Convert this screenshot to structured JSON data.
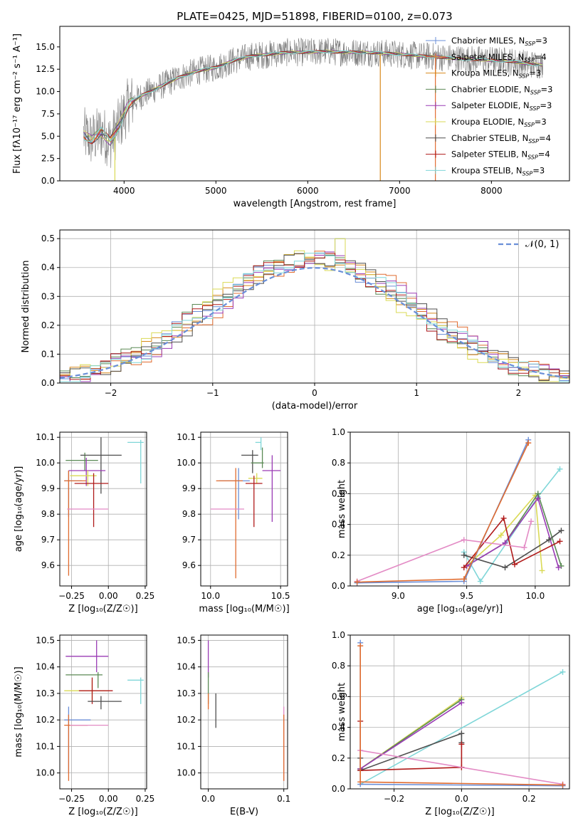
{
  "title": "PLATE=0425, MJD=51898, FIBERID=0100, z=0.073",
  "colors": {
    "Chabrier MILES": "#6b8fd8",
    "Salpeter MILES": "#e06c30",
    "Kroupa MILES": "#d8891c",
    "Chabrier ELODIE": "#5b8a55",
    "Salpeter ELODIE": "#9a3bb5",
    "Kroupa ELODIE": "#dada55",
    "Chabrier STELIB": "#4f4f4f",
    "Salpeter STELIB": "#b01a1a",
    "Kroupa STELIB": "#7fd6d8",
    "pink": "#e38bc5",
    "gauss": "#6a8fd8"
  },
  "legend_main": [
    {
      "model": "Chabrier MILES",
      "label": "Chabrier MILES, N_SSP=3"
    },
    {
      "model": "Salpeter MILES",
      "label": "Salpeter MILES, N_SSP=4"
    },
    {
      "model": "Kroupa MILES",
      "label": "Kroupa MILES, N_SSP=3"
    },
    {
      "model": "Chabrier ELODIE",
      "label": "Chabrier ELODIE, N_SSP=3"
    },
    {
      "model": "Salpeter ELODIE",
      "label": "Salpeter ELODIE, N_SSP=3"
    },
    {
      "model": "Kroupa ELODIE",
      "label": "Kroupa ELODIE, N_SSP=3"
    },
    {
      "model": "Chabrier STELIB",
      "label": "Chabrier STELIB, N_SSP=4"
    },
    {
      "model": "Salpeter STELIB",
      "label": "Salpeter STELIB, N_SSP=4"
    },
    {
      "model": "Kroupa STELIB",
      "label": "Kroupa STELIB, N_SSP=3"
    }
  ],
  "chart_data": [
    {
      "type": "line",
      "title": "PLATE=0425, MJD=51898, FIBERID=0100, z=0.073",
      "xlabel": "wavelength [Angstrom, rest frame]",
      "ylabel": "Flux [f_λ 10^-17 erg cm^-2 s^-1 A^-1]",
      "xlim": [
        3300,
        8850
      ],
      "ylim": [
        0,
        17.3
      ],
      "xticks": [
        4000,
        5000,
        6000,
        7000,
        8000
      ],
      "yticks": [
        0.0,
        2.5,
        5.0,
        7.5,
        10.0,
        12.5,
        15.0
      ],
      "spectrum_envelope": {
        "wavelength": [
          3550,
          3650,
          3750,
          3850,
          3950,
          4050,
          4200,
          4400,
          4600,
          4800,
          5000,
          5200,
          5400,
          5600,
          5800,
          6000,
          6200,
          6400,
          6600,
          6800,
          7000,
          7200,
          7400,
          7600,
          7800,
          8000,
          8200,
          8400,
          8550
        ],
        "flux": [
          5.2,
          4.6,
          5.5,
          4.4,
          6.3,
          8.6,
          9.6,
          10.6,
          11.6,
          12.3,
          12.7,
          13.5,
          14.0,
          14.2,
          14.4,
          14.4,
          14.5,
          14.4,
          14.4,
          14.3,
          14.2,
          14.0,
          13.9,
          13.7,
          13.6,
          13.5,
          13.4,
          13.1,
          13.0
        ]
      },
      "series": [
        "Chabrier MILES",
        "Salpeter MILES",
        "Kroupa MILES",
        "Chabrier ELODIE",
        "Salpeter ELODIE",
        "Kroupa ELODIE",
        "Chabrier STELIB",
        "Salpeter STELIB",
        "Kroupa STELIB"
      ]
    },
    {
      "type": "histogram",
      "xlabel": "(data-model)/error",
      "ylabel": "Normed distribution",
      "xlim": [
        -2.5,
        2.5
      ],
      "ylim": [
        0,
        0.53
      ],
      "xticks": [
        -2,
        -1,
        0,
        1,
        2
      ],
      "yticks": [
        0.0,
        0.1,
        0.2,
        0.3,
        0.4,
        0.5
      ],
      "legend": "𝒩(0, 1)",
      "gaussian": {
        "mu": 0,
        "sigma": 1
      },
      "bin_width": 0.1,
      "series": [
        {
          "model": "Chabrier MILES",
          "offset": 0.02
        },
        {
          "model": "Salpeter MILES",
          "offset": -0.03
        },
        {
          "model": "Kroupa MILES",
          "offset": 0.01
        },
        {
          "model": "Chabrier ELODIE",
          "offset": 0.03
        },
        {
          "model": "Salpeter ELODIE",
          "offset": -0.02
        },
        {
          "model": "Kroupa ELODIE",
          "offset": 0.035
        },
        {
          "model": "Chabrier STELIB",
          "offset": -0.01
        },
        {
          "model": "Salpeter STELIB",
          "offset": 0.025
        },
        {
          "model": "Kroupa STELIB",
          "offset": 0.0
        }
      ]
    },
    {
      "type": "errorbar",
      "xlabel": "Z [log10(Z/Z☉)]",
      "ylabel": "age [log10(age/yr)]",
      "xlim": [
        -0.33,
        0.26
      ],
      "ylim": [
        9.52,
        10.12
      ],
      "xticks": [
        -0.25,
        0.0,
        0.25
      ],
      "yticks": [
        9.6,
        9.7,
        9.8,
        9.9,
        10.0,
        10.1
      ],
      "points": [
        {
          "c": "Kroupa STELIB",
          "x": 0.22,
          "y": 10.08,
          "xerr": [
            0.09,
            0.02
          ],
          "yerr": [
            0.16,
            0.01
          ]
        },
        {
          "c": "Chabrier ELODIE",
          "x": -0.16,
          "y": 10.01,
          "xerr": [
            0.13,
            0.09
          ],
          "yerr": [
            0.04,
            0.03
          ]
        },
        {
          "c": "Chabrier STELIB",
          "x": -0.05,
          "y": 10.03,
          "xerr": [
            0.14,
            0.14
          ],
          "yerr": [
            0.15,
            0.07
          ]
        },
        {
          "c": "Salpeter ELODIE",
          "x": -0.15,
          "y": 9.97,
          "xerr": [
            0.12,
            0.13
          ],
          "yerr": [
            0.06,
            0.05
          ]
        },
        {
          "c": "Kroupa ELODIE",
          "x": -0.14,
          "y": 9.95,
          "xerr": [
            0.12,
            0.06
          ],
          "yerr": [
            0.04,
            0.02
          ]
        },
        {
          "c": "Chabrier MILES",
          "x": -0.27,
          "y": 9.93,
          "xerr": [
            0.03,
            0.09
          ],
          "yerr": [
            0.14,
            0.04
          ]
        },
        {
          "c": "Salpeter MILES",
          "x": -0.27,
          "y": 9.93,
          "xerr": [
            0.03,
            0.12
          ],
          "yerr": [
            0.37,
            0.04
          ]
        },
        {
          "c": "Salpeter STELIB",
          "x": -0.1,
          "y": 9.92,
          "xerr": [
            0.13,
            0.1
          ],
          "yerr": [
            0.17,
            0.04
          ]
        },
        {
          "c": "pink",
          "x": -0.15,
          "y": 9.82,
          "xerr": [
            0.13,
            0.15
          ],
          "yerr": [
            0.0,
            0.0
          ]
        }
      ]
    },
    {
      "type": "errorbar",
      "xlabel": "mass [log10(M/M☉)]",
      "ylabel": "",
      "xlim": [
        9.93,
        10.55
      ],
      "ylim": [
        9.52,
        10.12
      ],
      "xticks": [
        10.0,
        10.5
      ],
      "yticks": [
        9.6,
        9.7,
        9.8,
        9.9,
        10.0,
        10.1
      ],
      "points": [
        {
          "c": "Kroupa STELIB",
          "x": 10.36,
          "y": 10.08,
          "xerr": [
            0.04,
            0.0
          ],
          "yerr": [
            0.03,
            0.02
          ]
        },
        {
          "c": "Chabrier STELIB",
          "x": 10.3,
          "y": 10.03,
          "xerr": [
            0.08,
            0.04
          ],
          "yerr": [
            0.07,
            0.02
          ]
        },
        {
          "c": "Chabrier ELODIE",
          "x": 10.37,
          "y": 10.0,
          "xerr": [
            0.08,
            0.01
          ],
          "yerr": [
            0.02,
            0.06
          ]
        },
        {
          "c": "Salpeter ELODIE",
          "x": 10.44,
          "y": 9.97,
          "xerr": [
            0.07,
            0.06
          ],
          "yerr": [
            0.2,
            0.06
          ]
        },
        {
          "c": "Kroupa ELODIE",
          "x": 10.33,
          "y": 9.94,
          "xerr": [
            0.06,
            0.04
          ],
          "yerr": [
            0.02,
            0.02
          ]
        },
        {
          "c": "Chabrier MILES",
          "x": 10.2,
          "y": 9.93,
          "xerr": [
            0.14,
            0.08
          ],
          "yerr": [
            0.15,
            0.05
          ]
        },
        {
          "c": "Salpeter MILES",
          "x": 10.18,
          "y": 9.93,
          "xerr": [
            0.14,
            0.05
          ],
          "yerr": [
            0.38,
            0.05
          ]
        },
        {
          "c": "Salpeter STELIB",
          "x": 10.31,
          "y": 9.92,
          "xerr": [
            0.06,
            0.06
          ],
          "yerr": [
            0.17,
            0.03
          ]
        },
        {
          "c": "pink",
          "x": 10.18,
          "y": 9.82,
          "xerr": [
            0.18,
            0.06
          ],
          "yerr": [
            0.0,
            0.0
          ]
        }
      ]
    },
    {
      "type": "line",
      "xlabel": "age [log10(age/yr)]",
      "ylabel": "mass weight",
      "xlim": [
        8.65,
        10.25
      ],
      "ylim": [
        0,
        1.0
      ],
      "xticks": [
        9.0,
        9.5,
        10.0
      ],
      "yticks": [
        0.0,
        0.2,
        0.4,
        0.6,
        0.8,
        1.0
      ],
      "series": [
        {
          "c": "Kroupa STELIB",
          "x": [
            9.48,
            9.6,
            10.02,
            10.18
          ],
          "y": [
            0.22,
            0.03,
            0.58,
            0.76
          ]
        },
        {
          "c": "Kroupa ELODIE",
          "x": [
            9.5,
            9.75,
            10.0,
            10.05
          ],
          "y": [
            0.13,
            0.33,
            0.59,
            0.1
          ]
        },
        {
          "c": "Chabrier ELODIE",
          "x": [
            9.5,
            9.78,
            10.02,
            10.19
          ],
          "y": [
            0.13,
            0.28,
            0.6,
            0.13
          ]
        },
        {
          "c": "Salpeter ELODIE",
          "x": [
            9.5,
            9.78,
            10.02,
            10.17
          ],
          "y": [
            0.13,
            0.28,
            0.57,
            0.12
          ]
        },
        {
          "c": "Chabrier STELIB",
          "x": [
            9.48,
            9.78,
            10.1,
            10.19
          ],
          "y": [
            0.2,
            0.12,
            0.3,
            0.36
          ]
        },
        {
          "c": "Salpeter STELIB",
          "x": [
            9.48,
            9.77,
            9.85,
            10.18
          ],
          "y": [
            0.12,
            0.44,
            0.14,
            0.29
          ]
        },
        {
          "c": "pink",
          "x": [
            8.7,
            9.48,
            9.92,
            9.97
          ],
          "y": [
            0.03,
            0.3,
            0.25,
            0.42
          ]
        },
        {
          "c": "Chabrier MILES",
          "x": [
            8.7,
            9.48,
            9.95
          ],
          "y": [
            0.02,
            0.03,
            0.95
          ]
        },
        {
          "c": "Salpeter MILES",
          "x": [
            8.7,
            9.48,
            9.95
          ],
          "y": [
            0.025,
            0.045,
            0.93
          ]
        }
      ]
    },
    {
      "type": "errorbar",
      "xlabel": "Z [log10(Z/Z☉)]",
      "ylabel": "mass [log10(M/M☉)]",
      "xlim": [
        -0.33,
        0.26
      ],
      "ylim": [
        9.94,
        10.52
      ],
      "xticks": [
        -0.25,
        0.0,
        0.25
      ],
      "yticks": [
        10.0,
        10.1,
        10.2,
        10.3,
        10.4,
        10.5
      ],
      "points": [
        {
          "c": "Salpeter ELODIE",
          "x": -0.08,
          "y": 10.44,
          "xerr": [
            0.21,
            0.08
          ],
          "yerr": [
            0.06,
            0.06
          ]
        },
        {
          "c": "Chabrier ELODIE",
          "x": -0.07,
          "y": 10.37,
          "xerr": [
            0.22,
            0.03
          ],
          "yerr": [
            0.05,
            0.01
          ]
        },
        {
          "c": "Kroupa STELIB",
          "x": 0.22,
          "y": 10.35,
          "xerr": [
            0.09,
            0.02
          ],
          "yerr": [
            0.09,
            0.01
          ]
        },
        {
          "c": "Kroupa ELODIE",
          "x": -0.11,
          "y": 10.31,
          "xerr": [
            0.19,
            0.11
          ],
          "yerr": [
            0.04,
            0.04
          ]
        },
        {
          "c": "Salpeter STELIB",
          "x": -0.11,
          "y": 10.31,
          "xerr": [
            0.09,
            0.14
          ],
          "yerr": [
            0.05,
            0.05
          ]
        },
        {
          "c": "Chabrier STELIB",
          "x": -0.05,
          "y": 10.27,
          "xerr": [
            0.09,
            0.14
          ],
          "yerr": [
            0.03,
            0.02
          ]
        },
        {
          "c": "Chabrier MILES",
          "x": -0.27,
          "y": 10.2,
          "xerr": [
            0.03,
            0.15
          ],
          "yerr": [
            0.2,
            0.05
          ]
        },
        {
          "c": "Salpeter MILES",
          "x": -0.27,
          "y": 10.18,
          "xerr": [
            0.03,
            0.13
          ],
          "yerr": [
            0.21,
            0.04
          ]
        },
        {
          "c": "pink",
          "x": -0.13,
          "y": 10.18,
          "xerr": [
            0.13,
            0.13
          ],
          "yerr": [
            0.0,
            0.0
          ]
        }
      ]
    },
    {
      "type": "errorbar",
      "xlabel": "E(B-V)",
      "ylabel": "",
      "xlim": [
        -0.01,
        0.105
      ],
      "ylim": [
        9.94,
        10.52
      ],
      "xticks": [
        0.0,
        0.1
      ],
      "yticks": [
        10.0,
        10.1,
        10.2,
        10.3,
        10.4,
        10.5
      ],
      "points": [
        {
          "c": "Salpeter ELODIE",
          "x": 0.0,
          "y": 10.44,
          "yerr": [
            0.08,
            0.06
          ]
        },
        {
          "c": "Chabrier ELODIE",
          "x": 0.0,
          "y": 10.32,
          "yerr": [
            0.06,
            0.06
          ]
        },
        {
          "c": "Salpeter MILES",
          "x": 0.0,
          "y": 10.28,
          "yerr": [
            0.04,
            0.02
          ]
        },
        {
          "c": "Chabrier STELIB",
          "x": 0.01,
          "y": 10.23,
          "yerr": [
            0.06,
            0.07
          ]
        },
        {
          "c": "pink",
          "x": 0.1,
          "y": 10.12,
          "yerr": [
            0.15,
            0.13
          ]
        },
        {
          "c": "Salpeter MILES",
          "x": 0.1,
          "y": 10.12,
          "yerr": [
            0.15,
            0.1
          ]
        }
      ]
    },
    {
      "type": "line",
      "xlabel": "Z [log10(Z/Z☉)]",
      "ylabel": "mass weight",
      "xlim": [
        -0.33,
        0.32
      ],
      "ylim": [
        0,
        1.0
      ],
      "xticks": [
        -0.2,
        0.0,
        0.2
      ],
      "yticks": [
        0.0,
        0.2,
        0.4,
        0.6,
        0.8,
        1.0
      ],
      "series": [
        {
          "c": "Kroupa STELIB",
          "x": [
            -0.3,
            0.3
          ],
          "y": [
            0.03,
            0.76
          ]
        },
        {
          "c": "Kroupa ELODIE",
          "x": [
            -0.3,
            0.0
          ],
          "y": [
            0.13,
            0.59
          ]
        },
        {
          "c": "Chabrier ELODIE",
          "x": [
            -0.3,
            0.0
          ],
          "y": [
            0.13,
            0.58
          ]
        },
        {
          "c": "Salpeter ELODIE",
          "x": [
            -0.3,
            0.0
          ],
          "y": [
            0.13,
            0.56
          ]
        },
        {
          "c": "Chabrier STELIB",
          "x": [
            -0.3,
            -0.3,
            0.0,
            0.0
          ],
          "y": [
            0.2,
            0.12,
            0.36,
            0.3
          ]
        },
        {
          "c": "Salpeter STELIB",
          "x": [
            -0.3,
            -0.3,
            0.0,
            0.0
          ],
          "y": [
            0.44,
            0.12,
            0.14,
            0.29
          ]
        },
        {
          "c": "pink",
          "x": [
            -0.3,
            0.3
          ],
          "y": [
            0.25,
            0.03
          ]
        },
        {
          "c": "Chabrier MILES",
          "x": [
            -0.3,
            -0.3,
            0.3
          ],
          "y": [
            0.95,
            0.03,
            0.02
          ]
        },
        {
          "c": "Salpeter MILES",
          "x": [
            -0.3,
            -0.3,
            0.3
          ],
          "y": [
            0.93,
            0.045,
            0.025
          ]
        }
      ]
    }
  ]
}
